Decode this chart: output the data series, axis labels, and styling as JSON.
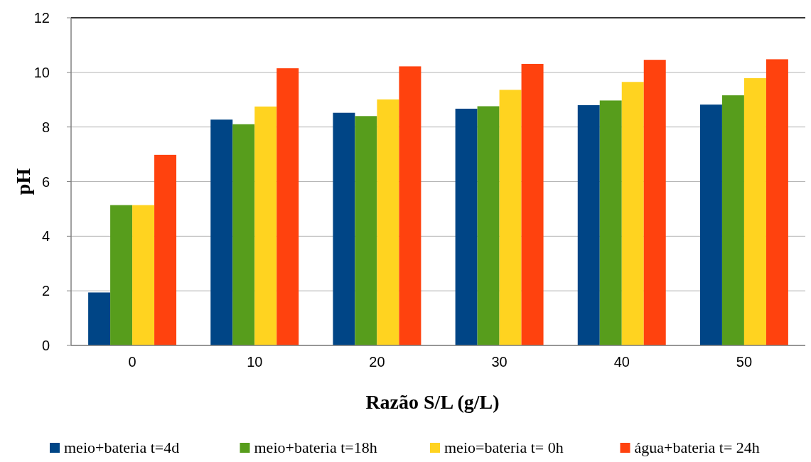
{
  "chart_data": {
    "type": "bar",
    "xlabel": "Razão S/L (g/L)",
    "ylabel": "pH",
    "categories": [
      "0",
      "10",
      "20",
      "30",
      "40",
      "50"
    ],
    "series": [
      {
        "name": "meio+bateria t=4d",
        "color": "#004586",
        "values": [
          1.94,
          8.27,
          8.52,
          8.67,
          8.8,
          8.82
        ]
      },
      {
        "name": "meio+bateria t=18h",
        "color": "#579d1c",
        "values": [
          5.14,
          8.1,
          8.4,
          8.76,
          8.97,
          9.16
        ]
      },
      {
        "name": "meio=bateria t= 0h",
        "color": "#ffd320",
        "values": [
          5.14,
          8.75,
          9.01,
          9.36,
          9.65,
          9.79
        ]
      },
      {
        "name": "água+bateria t= 24h",
        "color": "#ff420e",
        "values": [
          6.98,
          10.15,
          10.22,
          10.31,
          10.46,
          10.48
        ]
      }
    ],
    "ylim": [
      0,
      12
    ],
    "yticks": [
      0,
      2,
      4,
      6,
      8,
      10,
      12
    ],
    "grid": "y",
    "legend": "bottom"
  }
}
